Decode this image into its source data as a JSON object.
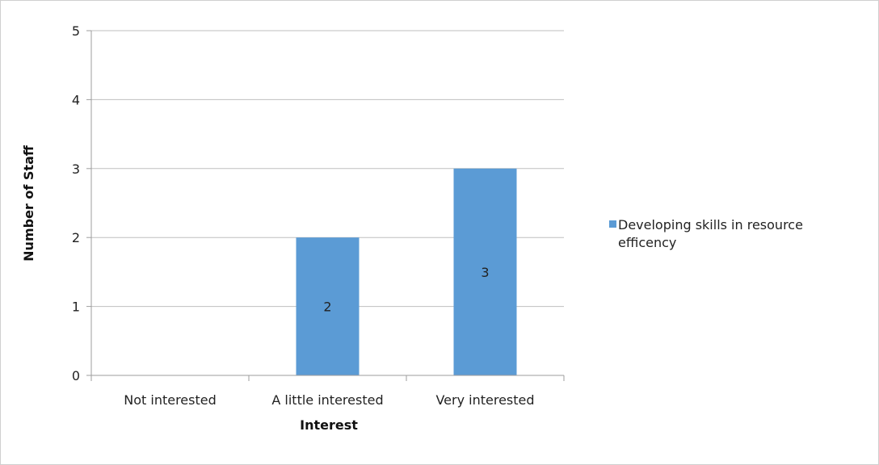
{
  "chart_data": {
    "type": "bar",
    "categories": [
      "Not interested",
      "A little interested",
      "Very interested"
    ],
    "series": [
      {
        "name": "Developing skills in resource efficency",
        "legend_lines": [
          "Developing skills in resource",
          "efficency"
        ],
        "values": [
          0,
          2,
          3
        ],
        "data_labels": [
          "",
          "2",
          "3"
        ],
        "color": "#5b9bd5"
      }
    ],
    "xlabel": "Interest",
    "ylabel": "Number of Staff",
    "ylim": [
      0,
      5
    ],
    "yticks": [
      "0",
      "1",
      "2",
      "3",
      "4",
      "5"
    ],
    "grid": true,
    "legend_position": "right",
    "gridline_color": "#bfbfbf",
    "axis_color": "#9e9e9e"
  }
}
